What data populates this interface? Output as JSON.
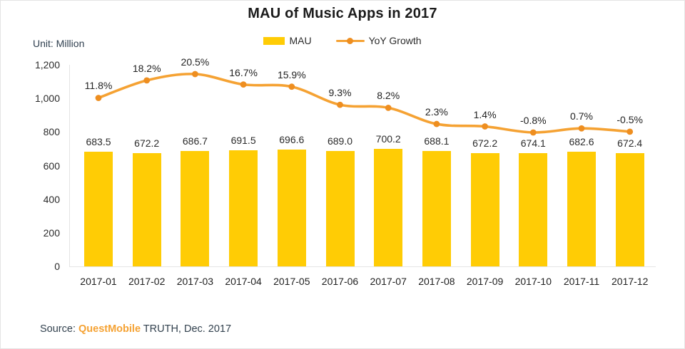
{
  "title": "MAU of Music Apps in 2017",
  "unit_label": "Unit: Million",
  "legend": {
    "mau_label": "MAU",
    "yoy_label": "YoY Growth"
  },
  "source": {
    "prefix": "Source: ",
    "brand": "QuestMobile",
    "suffix": " TRUTH, Dec. 2017"
  },
  "colors": {
    "bar": "#FFCC05",
    "line": "#F5A233",
    "marker": "#EE8E20",
    "axis": "#E4E4E4",
    "title_text": "#1B1B1B",
    "unit_text": "#2E3E4E",
    "source_brand": "#F5A233"
  },
  "chart_data": {
    "type": "bar",
    "title": "MAU of Music Apps in 2017",
    "xlabel": "",
    "ylabel": "Unit: Million",
    "ylim": [
      0,
      1200
    ],
    "ytick_values": [
      0,
      200,
      400,
      600,
      800,
      1000,
      1200
    ],
    "ytick_labels": [
      "0",
      "200",
      "400",
      "600",
      "800",
      "1,000",
      "1,200"
    ],
    "grid": false,
    "legend_position": "top-center",
    "categories": [
      "2017-01",
      "2017-02",
      "2017-03",
      "2017-04",
      "2017-05",
      "2017-06",
      "2017-07",
      "2017-08",
      "2017-09",
      "2017-10",
      "2017-11",
      "2017-12"
    ],
    "series": [
      {
        "name": "MAU",
        "type": "bar",
        "values": [
          683.5,
          672.2,
          686.7,
          691.5,
          696.6,
          689.0,
          700.2,
          688.1,
          672.2,
          674.1,
          682.6,
          672.4
        ],
        "labels": [
          "683.5",
          "672.2",
          "686.7",
          "691.5",
          "696.6",
          "689.0",
          "700.2",
          "688.1",
          "672.2",
          "674.1",
          "682.6",
          "672.4"
        ]
      },
      {
        "name": "YoY Growth",
        "type": "line",
        "values": [
          11.8,
          18.2,
          20.5,
          16.7,
          15.9,
          9.3,
          8.2,
          2.3,
          1.4,
          -0.8,
          0.7,
          -0.5
        ],
        "labels": [
          "11.8%",
          "18.2%",
          "20.5%",
          "16.7%",
          "15.9%",
          "9.3%",
          "8.2%",
          "2.3%",
          "1.4%",
          "-0.8%",
          "0.7%",
          "-0.5%"
        ]
      }
    ]
  }
}
